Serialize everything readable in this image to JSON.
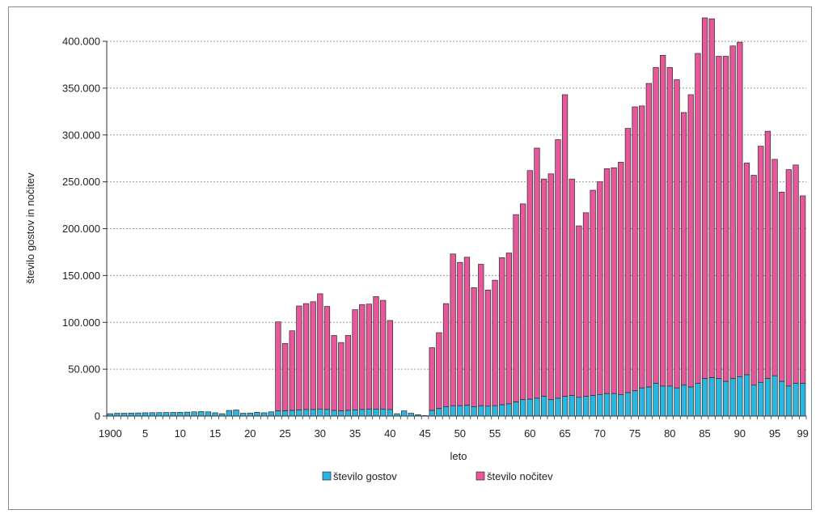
{
  "chart_data": {
    "type": "bar",
    "stacked": true,
    "xlabel": "leto",
    "ylabel": "število gostov in nočitev",
    "ylim": [
      0,
      400000
    ],
    "yticks": [
      0,
      50000,
      100000,
      150000,
      200000,
      250000,
      300000,
      350000,
      400000
    ],
    "ytick_labels": [
      "0",
      "50.000",
      "100.000",
      "150.000",
      "200.000",
      "250.000",
      "300.000",
      "350.000",
      "400.000"
    ],
    "xtick_labels": [
      {
        "year": 1900,
        "label": "1900"
      },
      {
        "year": 1905,
        "label": "5"
      },
      {
        "year": 1910,
        "label": "10"
      },
      {
        "year": 1915,
        "label": "15"
      },
      {
        "year": 1920,
        "label": "20"
      },
      {
        "year": 1925,
        "label": "25"
      },
      {
        "year": 1930,
        "label": "30"
      },
      {
        "year": 1935,
        "label": "35"
      },
      {
        "year": 1940,
        "label": "40"
      },
      {
        "year": 1945,
        "label": "45"
      },
      {
        "year": 1950,
        "label": "50"
      },
      {
        "year": 1955,
        "label": "55"
      },
      {
        "year": 1960,
        "label": "60"
      },
      {
        "year": 1965,
        "label": "65"
      },
      {
        "year": 1970,
        "label": "70"
      },
      {
        "year": 1975,
        "label": "75"
      },
      {
        "year": 1980,
        "label": "80"
      },
      {
        "year": 1985,
        "label": "85"
      },
      {
        "year": 1990,
        "label": "90"
      },
      {
        "year": 1995,
        "label": "95"
      },
      {
        "year": 1999,
        "label": "99"
      }
    ],
    "grid": true,
    "legend_position": "bottom",
    "x": [
      1900,
      1901,
      1902,
      1903,
      1904,
      1905,
      1906,
      1907,
      1908,
      1909,
      1910,
      1911,
      1912,
      1913,
      1914,
      1915,
      1916,
      1917,
      1918,
      1919,
      1920,
      1921,
      1922,
      1923,
      1924,
      1925,
      1926,
      1927,
      1928,
      1929,
      1930,
      1931,
      1932,
      1933,
      1934,
      1935,
      1936,
      1937,
      1938,
      1939,
      1940,
      1941,
      1942,
      1943,
      1944,
      1945,
      1946,
      1947,
      1948,
      1949,
      1950,
      1951,
      1952,
      1953,
      1954,
      1955,
      1956,
      1957,
      1958,
      1959,
      1960,
      1961,
      1962,
      1963,
      1964,
      1965,
      1966,
      1967,
      1968,
      1969,
      1970,
      1971,
      1972,
      1973,
      1974,
      1975,
      1976,
      1977,
      1978,
      1979,
      1980,
      1981,
      1982,
      1983,
      1984,
      1985,
      1986,
      1987,
      1988,
      1989,
      1990,
      1991,
      1992,
      1993,
      1994,
      1995,
      1996,
      1997,
      1998,
      1999
    ],
    "series": [
      {
        "name": "število gostov",
        "color": "#29b6e0",
        "values": [
          2500,
          3000,
          3000,
          3200,
          3300,
          3500,
          3600,
          3700,
          3800,
          3900,
          4000,
          4200,
          4500,
          4800,
          4500,
          3500,
          2500,
          6000,
          6500,
          3000,
          3200,
          4000,
          3500,
          4500,
          5500,
          5500,
          6000,
          6500,
          7000,
          7000,
          7500,
          7000,
          6000,
          5500,
          6000,
          6500,
          7000,
          7500,
          7500,
          7500,
          7000,
          2500,
          5500,
          3000,
          1500,
          500,
          6000,
          8000,
          10000,
          11000,
          11000,
          11500,
          10000,
          11000,
          10500,
          11000,
          12000,
          13000,
          15000,
          17500,
          18000,
          19000,
          21000,
          17500,
          19000,
          21000,
          22000,
          20000,
          21000,
          22000,
          23000,
          24000,
          24000,
          23000,
          25000,
          27000,
          30000,
          31000,
          35000,
          32000,
          32000,
          30000,
          33000,
          31000,
          35000,
          40000,
          41000,
          40000,
          37000,
          40000,
          42000,
          44000,
          33000,
          36000,
          40000,
          43000,
          37000,
          32000,
          35000,
          35000
        ]
      },
      {
        "name": "število nočitev",
        "color": "#e9579b",
        "values": [
          0,
          0,
          0,
          0,
          0,
          0,
          0,
          0,
          0,
          0,
          0,
          0,
          0,
          0,
          0,
          0,
          0,
          0,
          0,
          0,
          0,
          0,
          0,
          0,
          95000,
          72000,
          85000,
          111000,
          113000,
          115000,
          123000,
          110000,
          80000,
          73000,
          80000,
          107000,
          112000,
          112000,
          120000,
          116000,
          95000,
          0,
          0,
          0,
          0,
          0,
          67000,
          81000,
          110000,
          162000,
          153000,
          158000,
          127000,
          151000,
          124000,
          134000,
          157000,
          161000,
          200000,
          209000,
          244000,
          267000,
          232000,
          241000,
          276000,
          322000,
          231000,
          183000,
          196000,
          219000,
          227000,
          240000,
          241000,
          248000,
          282000,
          303000,
          301000,
          324000,
          337000,
          353000,
          340000,
          329000,
          291000,
          312000,
          352000,
          385000,
          383000,
          344000,
          347000,
          355000,
          357000,
          226000,
          224000,
          252000,
          264000,
          231000,
          202000,
          231000,
          233000,
          200000
        ]
      }
    ]
  }
}
